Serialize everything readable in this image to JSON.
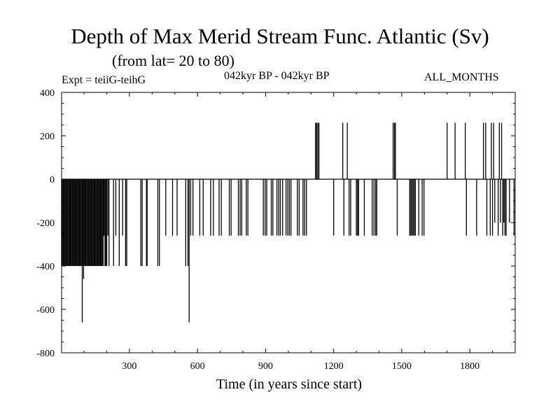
{
  "chart_data": {
    "type": "line",
    "title": "Depth of Max Merid Stream Func. Atlantic (Sv)",
    "subtitle": "(from lat= 20 to 80)",
    "experiment": "Expt = teiiG-teihG",
    "period": "042kyr BP - 042kyr BP",
    "months": "ALL_MONTHS",
    "xlabel": "Time (in years since start)",
    "ylabel": "",
    "xlim": [
      1,
      2000
    ],
    "ylim": [
      -800,
      400
    ],
    "xticks": [
      300,
      600,
      900,
      1200,
      1500,
      1800
    ],
    "yticks": [
      -800,
      -600,
      -400,
      -200,
      0,
      200,
      400
    ],
    "grid": false,
    "baseline": 0,
    "series": [
      {
        "name": "depth",
        "color": "#000000",
        "spikes": [
          {
            "x": 1,
            "y": -400
          },
          {
            "x": 4,
            "y": -400
          },
          {
            "x": 8,
            "y": -400
          },
          {
            "x": 12,
            "y": -400
          },
          {
            "x": 16,
            "y": -400
          },
          {
            "x": 20,
            "y": -400
          },
          {
            "x": 24,
            "y": -400
          },
          {
            "x": 28,
            "y": -400
          },
          {
            "x": 32,
            "y": -400
          },
          {
            "x": 36,
            "y": -400
          },
          {
            "x": 40,
            "y": -400
          },
          {
            "x": 44,
            "y": -400
          },
          {
            "x": 48,
            "y": -400
          },
          {
            "x": 52,
            "y": -400
          },
          {
            "x": 56,
            "y": -400
          },
          {
            "x": 60,
            "y": -400
          },
          {
            "x": 64,
            "y": -400
          },
          {
            "x": 68,
            "y": -400
          },
          {
            "x": 72,
            "y": -400
          },
          {
            "x": 76,
            "y": -400
          },
          {
            "x": 80,
            "y": -400
          },
          {
            "x": 84,
            "y": -400
          },
          {
            "x": 88,
            "y": -400
          },
          {
            "x": 92,
            "y": -660
          },
          {
            "x": 96,
            "y": -400
          },
          {
            "x": 98,
            "y": -460
          },
          {
            "x": 100,
            "y": -400
          },
          {
            "x": 104,
            "y": -400
          },
          {
            "x": 108,
            "y": -400
          },
          {
            "x": 112,
            "y": -400
          },
          {
            "x": 116,
            "y": -400
          },
          {
            "x": 120,
            "y": -400
          },
          {
            "x": 124,
            "y": -400
          },
          {
            "x": 128,
            "y": -400
          },
          {
            "x": 132,
            "y": -400
          },
          {
            "x": 136,
            "y": -400
          },
          {
            "x": 140,
            "y": -400
          },
          {
            "x": 144,
            "y": -400
          },
          {
            "x": 148,
            "y": -400
          },
          {
            "x": 152,
            "y": -400
          },
          {
            "x": 156,
            "y": -400
          },
          {
            "x": 160,
            "y": -400
          },
          {
            "x": 164,
            "y": -400
          },
          {
            "x": 168,
            "y": -400
          },
          {
            "x": 172,
            "y": -400
          },
          {
            "x": 176,
            "y": -400
          },
          {
            "x": 180,
            "y": -400
          },
          {
            "x": 184,
            "y": -400
          },
          {
            "x": 188,
            "y": -260
          },
          {
            "x": 192,
            "y": -400
          },
          {
            "x": 196,
            "y": -400
          },
          {
            "x": 200,
            "y": -400
          },
          {
            "x": 205,
            "y": -260
          },
          {
            "x": 210,
            "y": -400
          },
          {
            "x": 230,
            "y": -400
          },
          {
            "x": 240,
            "y": -260
          },
          {
            "x": 255,
            "y": -400
          },
          {
            "x": 270,
            "y": -260
          },
          {
            "x": 283,
            "y": -400
          },
          {
            "x": 288,
            "y": -400
          },
          {
            "x": 350,
            "y": -400
          },
          {
            "x": 356,
            "y": -400
          },
          {
            "x": 375,
            "y": -400
          },
          {
            "x": 378,
            "y": -400
          },
          {
            "x": 425,
            "y": -400
          },
          {
            "x": 432,
            "y": -400
          },
          {
            "x": 460,
            "y": -260
          },
          {
            "x": 490,
            "y": -260
          },
          {
            "x": 510,
            "y": -260
          },
          {
            "x": 548,
            "y": -400
          },
          {
            "x": 558,
            "y": -400
          },
          {
            "x": 563,
            "y": -660
          },
          {
            "x": 570,
            "y": -260
          },
          {
            "x": 580,
            "y": -260
          },
          {
            "x": 610,
            "y": -260
          },
          {
            "x": 625,
            "y": -260
          },
          {
            "x": 658,
            "y": -260
          },
          {
            "x": 670,
            "y": -260
          },
          {
            "x": 695,
            "y": -260
          },
          {
            "x": 705,
            "y": -260
          },
          {
            "x": 740,
            "y": -260
          },
          {
            "x": 748,
            "y": -260
          },
          {
            "x": 780,
            "y": -260
          },
          {
            "x": 788,
            "y": -260
          },
          {
            "x": 795,
            "y": -260
          },
          {
            "x": 815,
            "y": -260
          },
          {
            "x": 822,
            "y": -260
          },
          {
            "x": 890,
            "y": -260
          },
          {
            "x": 898,
            "y": -260
          },
          {
            "x": 905,
            "y": -260
          },
          {
            "x": 925,
            "y": -260
          },
          {
            "x": 932,
            "y": -260
          },
          {
            "x": 950,
            "y": -260
          },
          {
            "x": 958,
            "y": -260
          },
          {
            "x": 965,
            "y": -260
          },
          {
            "x": 975,
            "y": -260
          },
          {
            "x": 990,
            "y": -260
          },
          {
            "x": 998,
            "y": -260
          },
          {
            "x": 1005,
            "y": -260
          },
          {
            "x": 1012,
            "y": -260
          },
          {
            "x": 1040,
            "y": -260
          },
          {
            "x": 1048,
            "y": -260
          },
          {
            "x": 1065,
            "y": -260
          },
          {
            "x": 1072,
            "y": -260
          },
          {
            "x": 1080,
            "y": -260
          },
          {
            "x": 1120,
            "y": 260
          },
          {
            "x": 1125,
            "y": 260
          },
          {
            "x": 1130,
            "y": 260
          },
          {
            "x": 1135,
            "y": 260
          },
          {
            "x": 1200,
            "y": -260
          },
          {
            "x": 1240,
            "y": 260
          },
          {
            "x": 1245,
            "y": -260
          },
          {
            "x": 1260,
            "y": 260
          },
          {
            "x": 1268,
            "y": -260
          },
          {
            "x": 1275,
            "y": -260
          },
          {
            "x": 1300,
            "y": -260
          },
          {
            "x": 1305,
            "y": -260
          },
          {
            "x": 1310,
            "y": -260
          },
          {
            "x": 1335,
            "y": -260
          },
          {
            "x": 1370,
            "y": -260
          },
          {
            "x": 1378,
            "y": -260
          },
          {
            "x": 1385,
            "y": -260
          },
          {
            "x": 1390,
            "y": -260
          },
          {
            "x": 1462,
            "y": 260
          },
          {
            "x": 1468,
            "y": 260
          },
          {
            "x": 1472,
            "y": 260
          },
          {
            "x": 1480,
            "y": -260
          },
          {
            "x": 1535,
            "y": -260
          },
          {
            "x": 1540,
            "y": -260
          },
          {
            "x": 1545,
            "y": -260
          },
          {
            "x": 1550,
            "y": -260
          },
          {
            "x": 1555,
            "y": -260
          },
          {
            "x": 1560,
            "y": -260
          },
          {
            "x": 1575,
            "y": -260
          },
          {
            "x": 1590,
            "y": -260
          },
          {
            "x": 1598,
            "y": -260
          },
          {
            "x": 1700,
            "y": 260
          },
          {
            "x": 1735,
            "y": 260
          },
          {
            "x": 1780,
            "y": 260
          },
          {
            "x": 1785,
            "y": -260
          },
          {
            "x": 1830,
            "y": -260
          },
          {
            "x": 1860,
            "y": 260
          },
          {
            "x": 1870,
            "y": 260
          },
          {
            "x": 1875,
            "y": -260
          },
          {
            "x": 1890,
            "y": -260
          },
          {
            "x": 1895,
            "y": 260
          },
          {
            "x": 1900,
            "y": -260
          },
          {
            "x": 1905,
            "y": 260
          },
          {
            "x": 1910,
            "y": -200
          },
          {
            "x": 1925,
            "y": -260
          },
          {
            "x": 1930,
            "y": 260
          },
          {
            "x": 1935,
            "y": -200
          },
          {
            "x": 1940,
            "y": 260
          },
          {
            "x": 1945,
            "y": -260
          },
          {
            "x": 1950,
            "y": -200
          },
          {
            "x": 1955,
            "y": -260
          },
          {
            "x": 1960,
            "y": -260
          },
          {
            "x": 1975,
            "y": -200
          },
          {
            "x": 1995,
            "y": -260
          }
        ]
      }
    ]
  }
}
